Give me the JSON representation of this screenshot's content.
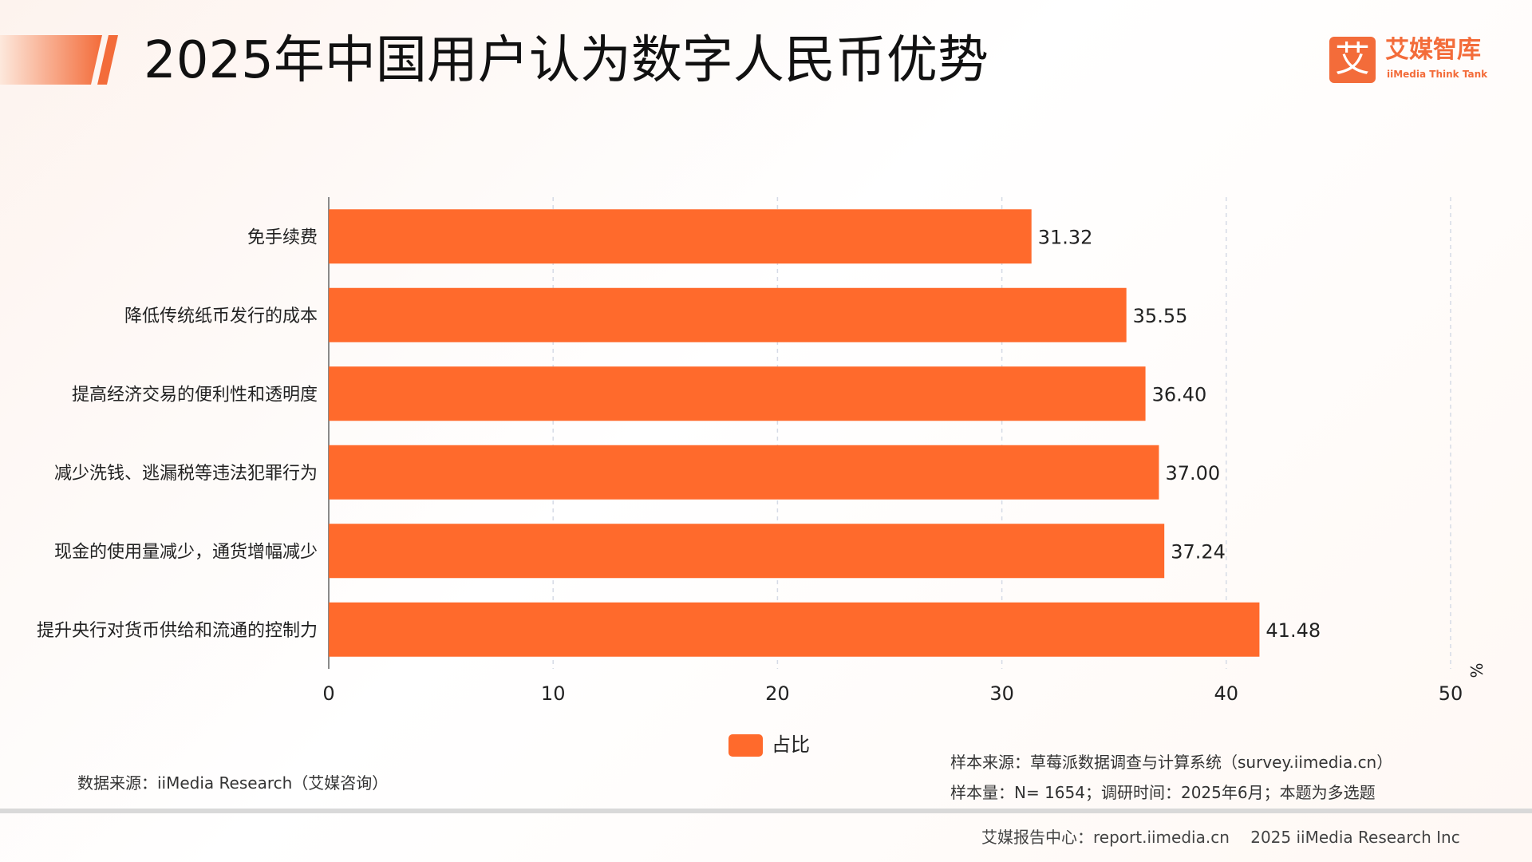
{
  "title": "2025年中国用户认为数字人民币优势",
  "logo": {
    "cn": "艾媒智库",
    "en": "iiMedia Think Tank",
    "mark": "艾"
  },
  "colors": {
    "bar": "#ff6a2c",
    "accent": "#f36c3a",
    "grid": "#d6dbe6",
    "axis": "#8a8a8a"
  },
  "chart_data": {
    "type": "bar",
    "orientation": "horizontal",
    "categories": [
      "免手续费",
      "降低传统纸币发行的成本",
      "提高经济交易的便利性和透明度",
      "减少洗钱、逃漏税等违法犯罪行为",
      "现金的使用量减少，通货增幅减少",
      "提升央行对货币供给和流通的控制力"
    ],
    "series": [
      {
        "name": "占比",
        "values": [
          31.32,
          35.55,
          36.4,
          37.0,
          37.24,
          41.48
        ]
      }
    ],
    "value_labels": [
      "31.32",
      "35.55",
      "36.40",
      "37.00",
      "37.24",
      "41.48"
    ],
    "xlim": [
      0,
      50
    ],
    "xticks": [
      0,
      10,
      20,
      30,
      40,
      50
    ],
    "unit": "%",
    "grid": true,
    "legend_position": "bottom"
  },
  "notes": {
    "data_source": "数据来源：iiMedia Research（艾媒咨询）",
    "sample_source": "样本来源：草莓派数据调查与计算系统（survey.iimedia.cn）",
    "sample_size": "样本量：N= 1654；调研时间：2025年6月；本题为多选题"
  },
  "footer": "艾媒报告中心：report.iimedia.cn　 2025 iiMedia Research Inc"
}
